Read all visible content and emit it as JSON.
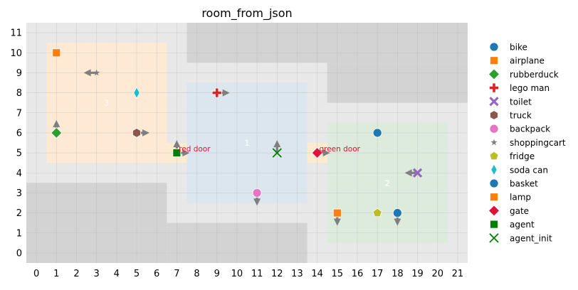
{
  "chart_data": {
    "type": "scatter",
    "title": "room_from_json",
    "xlim": [
      -0.5,
      21.5
    ],
    "ylim": [
      -0.5,
      11.5
    ],
    "x_ticks": [
      0,
      1,
      2,
      3,
      4,
      5,
      6,
      7,
      8,
      9,
      10,
      11,
      12,
      13,
      14,
      15,
      16,
      17,
      18,
      19,
      20,
      21
    ],
    "y_ticks": [
      0,
      1,
      2,
      3,
      4,
      5,
      6,
      7,
      8,
      9,
      10,
      11
    ],
    "grid": true,
    "legend_position": "right",
    "background_color": "#e8e8e8",
    "walls": [
      {
        "x0": 7.5,
        "y0": 9.5,
        "x1": 21.5,
        "y1": 11.5
      },
      {
        "x0": 14.5,
        "y0": 7.5,
        "x1": 21.5,
        "y1": 9.5
      },
      {
        "x0": -0.5,
        "y0": -0.5,
        "x1": 6.5,
        "y1": 3.5
      },
      {
        "x0": 6.5,
        "y0": -0.5,
        "x1": 13.5,
        "y1": 1.5
      }
    ],
    "rooms": [
      {
        "id": "3",
        "label": "3",
        "x0": 0.5,
        "y0": 4.5,
        "x1": 6.5,
        "y1": 10.5,
        "color": "#fde9d4",
        "label_x": 3.5,
        "label_y": 7.5
      },
      {
        "id": "1",
        "label": "1",
        "x0": 7.5,
        "y0": 2.5,
        "x1": 13.5,
        "y1": 8.5,
        "color": "#dbe6ef",
        "label_x": 10.5,
        "label_y": 5.5
      },
      {
        "id": "2",
        "label": "2",
        "x0": 14.5,
        "y0": 0.5,
        "x1": 20.5,
        "y1": 6.5,
        "color": "#dcebdc",
        "label_x": 17.5,
        "label_y": 3.5
      }
    ],
    "doors": [
      {
        "name": "red door",
        "label": "red door",
        "x0": 6.5,
        "y0": 4.5,
        "x1": 7.5,
        "y1": 5.5,
        "label_x": 7.1,
        "label_y": 5.2,
        "color": "#fdebd0"
      },
      {
        "name": "green door",
        "label": "green door",
        "x0": 13.5,
        "y0": 4.5,
        "x1": 14.5,
        "y1": 5.5,
        "label_x": 14.1,
        "label_y": 5.2,
        "color": "#fdebd0"
      }
    ],
    "door_label_color": "#e0102f",
    "room_label_color": "#ffffff",
    "series": [
      {
        "name": "bike",
        "marker": "circle",
        "color": "#1f77b4",
        "points": [
          {
            "x": 17,
            "y": 6
          }
        ]
      },
      {
        "name": "airplane",
        "marker": "square",
        "color": "#ff7f0e",
        "points": [
          {
            "x": 1,
            "y": 10
          }
        ]
      },
      {
        "name": "rubberduck",
        "marker": "diamond",
        "color": "#2ca02c",
        "points": [
          {
            "x": 1,
            "y": 6,
            "dir": "up"
          }
        ]
      },
      {
        "name": "lego man",
        "marker": "plus",
        "color": "#d62728",
        "points": [
          {
            "x": 9,
            "y": 8,
            "dir": "right"
          }
        ]
      },
      {
        "name": "toilet",
        "marker": "x",
        "color": "#9467bd",
        "points": [
          {
            "x": 19,
            "y": 4,
            "dir": "left"
          }
        ]
      },
      {
        "name": "truck",
        "marker": "hexagon",
        "color": "#8c564b",
        "points": [
          {
            "x": 5,
            "y": 6,
            "dir": "right"
          }
        ]
      },
      {
        "name": "backpack",
        "marker": "circle",
        "color": "#e377c2",
        "points": [
          {
            "x": 11,
            "y": 3,
            "dir": "down"
          }
        ]
      },
      {
        "name": "shoppingcart",
        "marker": "star",
        "color": "#7f7f7f",
        "points": [
          {
            "x": 3,
            "y": 9,
            "dir": "left"
          }
        ]
      },
      {
        "name": "fridge",
        "marker": "pentagon",
        "color": "#bcbd22",
        "points": [
          {
            "x": 17,
            "y": 2
          }
        ]
      },
      {
        "name": "soda can",
        "marker": "thin_diamond",
        "color": "#17becf",
        "points": [
          {
            "x": 5,
            "y": 8
          }
        ]
      },
      {
        "name": "basket",
        "marker": "circle",
        "color": "#1f77b4",
        "points": [
          {
            "x": 18,
            "y": 2,
            "dir": "down"
          }
        ]
      },
      {
        "name": "lamp",
        "marker": "square",
        "color": "#ff7f0e",
        "points": [
          {
            "x": 15,
            "y": 2,
            "dir": "down"
          }
        ]
      },
      {
        "name": "gate",
        "marker": "diamond",
        "color": "#dc143c",
        "points": [
          {
            "x": 14,
            "y": 5,
            "dir": "right"
          }
        ]
      },
      {
        "name": "agent",
        "marker": "square",
        "color": "#007f00",
        "points": [
          {
            "x": 7,
            "y": 5,
            "dir": "up"
          },
          {
            "x": 7,
            "y": 5,
            "dir": "right"
          }
        ]
      },
      {
        "name": "agent_init",
        "marker": "x_thin",
        "color": "#007f00",
        "points": [
          {
            "x": 12,
            "y": 5,
            "dir": "up"
          }
        ]
      }
    ]
  }
}
